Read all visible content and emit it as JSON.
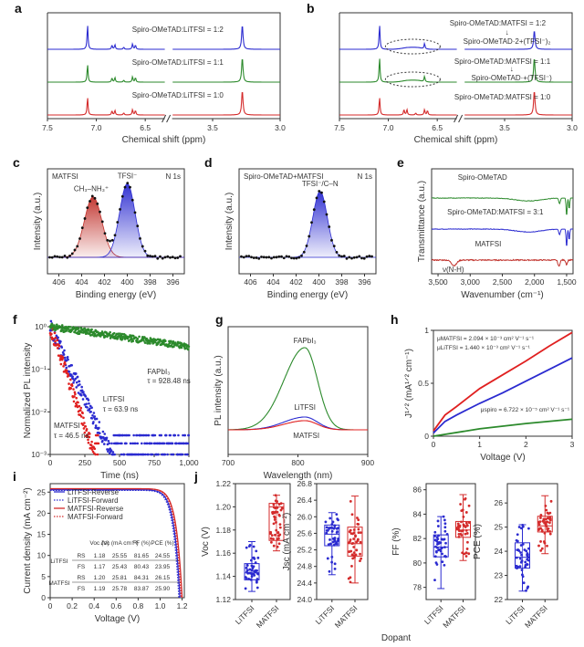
{
  "figure_label": "Dopant",
  "chart_data": [
    {
      "panel": "a",
      "type": "line",
      "title": "",
      "xlabel": "Chemical shift (ppm)",
      "ylabel": "",
      "x_ticks": [
        "7.5",
        "7.0",
        "6.5",
        "3.5",
        "3.0"
      ],
      "axis_break": true,
      "xlim": [
        7.5,
        3.0
      ],
      "series": [
        {
          "name": "Spiro-OMeTAD:LiTFSI = 1:2",
          "color": "#2b2bd0",
          "peaks_ppm": [
            7.09,
            6.84,
            6.81,
            6.72,
            6.63,
            6.6,
            3.28
          ],
          "heights": [
            0.9,
            0.15,
            0.17,
            0.08,
            0.2,
            0.15,
            0.9
          ]
        },
        {
          "name": "Spiro-OMeTAD:LiTFSI = 1:1",
          "color": "#2c8a2c",
          "peaks_ppm": [
            7.09,
            6.84,
            6.81,
            6.72,
            6.63,
            6.6,
            3.28
          ],
          "heights": [
            0.65,
            0.15,
            0.17,
            0.07,
            0.2,
            0.16,
            0.9
          ]
        },
        {
          "name": "Spiro-OMeTAD:LiTFSI = 1:0",
          "color": "#d42b2b",
          "peaks_ppm": [
            7.09,
            6.84,
            6.81,
            6.72,
            6.63,
            6.6,
            3.28
          ],
          "heights": [
            0.65,
            0.15,
            0.17,
            0.08,
            0.2,
            0.16,
            0.9
          ]
        }
      ]
    },
    {
      "panel": "b",
      "type": "line",
      "title": "",
      "xlabel": "Chemical shift (ppm)",
      "ylabel": "",
      "x_ticks": [
        "7.5",
        "7.0",
        "6.5",
        "3.5",
        "3.0"
      ],
      "axis_break": true,
      "xlim": [
        7.5,
        3.0
      ],
      "series": [
        {
          "name": "Spiro-OMeTAD:MATFSI = 1:2",
          "arrow_to": "Spiro-OMeTAD·2+(TFSI⁻)₂",
          "color": "#2b2bd0",
          "peaks_ppm": [
            7.09,
            6.63,
            3.28
          ],
          "heights": [
            0.9,
            0.2,
            0.7
          ]
        },
        {
          "name": "Spiro-OMeTAD:MATFSI = 1:1",
          "arrow_to": "Spiro-OMeTAD·+(TFSI⁻)",
          "color": "#2c8a2c",
          "peaks_ppm": [
            7.09,
            6.63,
            3.28
          ],
          "heights": [
            0.9,
            0.2,
            0.9
          ]
        },
        {
          "name": "Spiro-OMeTAD:MATFSI = 1:0",
          "color": "#d42b2b",
          "peaks_ppm": [
            7.09,
            6.84,
            6.81,
            6.72,
            6.63,
            6.6,
            3.28
          ],
          "heights": [
            0.65,
            0.2,
            0.2,
            0.07,
            0.2,
            0.16,
            0.9
          ]
        }
      ]
    },
    {
      "panel": "c",
      "type": "scatter",
      "title": "MATFSI",
      "corner_label": "N 1s",
      "xlabel": "Binding energy (eV)",
      "ylabel": "Intensity (a.u.)",
      "x_ticks": [
        "406",
        "404",
        "402",
        "400",
        "398",
        "396"
      ],
      "xlim": [
        407,
        395
      ],
      "peaks": [
        {
          "name": "CH₃–NH₃⁺",
          "center_eV": 403.0,
          "height": 0.78,
          "fwhm": 1.8,
          "color": "#c0302a"
        },
        {
          "name": "TFSI⁻",
          "center_eV": 400.0,
          "height": 0.95,
          "fwhm": 1.6,
          "color": "#2a2ad0"
        }
      ]
    },
    {
      "panel": "d",
      "type": "scatter",
      "title": "Spiro-OMeTAD+MATFSI",
      "corner_label": "N 1s",
      "xlabel": "Binding energy (eV)",
      "ylabel": "Intensity (a.u.)",
      "x_ticks": [
        "406",
        "404",
        "402",
        "400",
        "398",
        "396"
      ],
      "xlim": [
        407,
        395
      ],
      "peaks": [
        {
          "name": "TFSI⁻/C–N",
          "center_eV": 399.9,
          "height": 0.85,
          "fwhm": 1.5,
          "color": "#2a2ad0"
        }
      ]
    },
    {
      "panel": "e",
      "type": "line",
      "title": "",
      "xlabel": "Wavenumber (cm⁻¹)",
      "ylabel": "Transmittance (a.u.)",
      "x_ticks": [
        "3,500",
        "3,000",
        "2,500",
        "2,000",
        "1,500"
      ],
      "xlim": [
        3600,
        1400
      ],
      "annotation": "ν(N-H)",
      "series": [
        {
          "name": "Spiro-OMeTAD",
          "color": "#2c8a2c"
        },
        {
          "name": "Spiro-OMeTAD:MATFSI = 3:1",
          "color": "#2b2bd0"
        },
        {
          "name": "MATFSI",
          "color": "#c0302a"
        }
      ]
    },
    {
      "panel": "f",
      "type": "scatter",
      "title": "",
      "xlabel": "Time (ns)",
      "ylabel": "Normalized PL intensity",
      "x_ticks": [
        "0",
        "250",
        "500",
        "750",
        "1,000"
      ],
      "xlim": [
        0,
        1000
      ],
      "y_ticks": [
        "10⁰",
        "10⁻¹",
        "10⁻²",
        "10⁻³"
      ],
      "ylim_log10": [
        -3,
        0
      ],
      "series": [
        {
          "name": "FAPbI₃",
          "tau_label": "τ = 928.48 ns",
          "tau_ns": 928.48,
          "color": "#2c8a2c"
        },
        {
          "name": "LiTFSI",
          "tau_label": "τ = 63.9 ns",
          "tau_ns": 63.9,
          "color": "#2b2bd0"
        },
        {
          "name": "MATFSI",
          "tau_label": "τ = 46.5 ns",
          "tau_ns": 46.5,
          "color": "#e02020"
        }
      ]
    },
    {
      "panel": "g",
      "type": "line",
      "title": "",
      "xlabel": "Wavelength (nm)",
      "ylabel": "PL intensity (a.u.)",
      "x_ticks": [
        "700",
        "800",
        "900"
      ],
      "xlim": [
        700,
        900
      ],
      "series": [
        {
          "name": "FAPbI₃",
          "peak_nm": 810,
          "height": 0.9,
          "color": "#2c8a2c"
        },
        {
          "name": "LiTFSI",
          "peak_nm": 810,
          "height": 0.14,
          "color": "#2b2bd0"
        },
        {
          "name": "MATFSI",
          "peak_nm": 810,
          "height": 0.1,
          "color": "#e02020"
        }
      ]
    },
    {
      "panel": "h",
      "type": "line",
      "title": "",
      "xlabel": "Voltage (V)",
      "ylabel": "J¹ᐟ² (mA¹ᐟ² cm⁻¹)",
      "x_ticks": [
        "0",
        "1",
        "2",
        "3"
      ],
      "xlim": [
        0,
        3
      ],
      "y_ticks": [
        "0",
        "0.5",
        "1"
      ],
      "ylim": [
        0,
        1
      ],
      "annotations": [
        "μMATFSI = 2.094 × 10⁻³ cm² V⁻¹ s⁻¹",
        "μLiTFSI = 1.440 × 10⁻³ cm² V⁻¹ s⁻¹",
        "μspiro = 6.722 × 10⁻⁵ cm² V⁻¹ s⁻¹"
      ],
      "series": [
        {
          "name": "MATFSI",
          "color": "#e02020",
          "x": [
            0,
            0.25,
            0.5,
            1,
            1.5,
            2,
            2.5,
            3
          ],
          "y": [
            0.05,
            0.2,
            0.28,
            0.45,
            0.58,
            0.71,
            0.85,
            0.98
          ]
        },
        {
          "name": "LiTFSI",
          "color": "#2b2bd0",
          "x": [
            0,
            0.25,
            0.5,
            1,
            1.5,
            2,
            2.5,
            3
          ],
          "y": [
            0.03,
            0.14,
            0.2,
            0.31,
            0.41,
            0.52,
            0.63,
            0.74
          ]
        },
        {
          "name": "Spiro",
          "color": "#2c8a2c",
          "x": [
            0,
            1,
            2,
            3
          ],
          "y": [
            0.0,
            0.07,
            0.12,
            0.16
          ]
        }
      ]
    },
    {
      "panel": "i",
      "type": "line",
      "title": "",
      "xlabel": "Voltage (V)",
      "ylabel": "Current density (mA cm⁻²)",
      "x_ticks": [
        "0",
        "0.2",
        "0.4",
        "0.6",
        "0.8",
        "1.0",
        "1.2"
      ],
      "xlim": [
        0,
        1.22
      ],
      "y_ticks": [
        "0",
        "5",
        "10",
        "15",
        "20",
        "25"
      ],
      "ylim": [
        0,
        27
      ],
      "legend": [
        {
          "name": "LiTFSI-Reverse",
          "color": "#2b2bd0",
          "style": "solid"
        },
        {
          "name": "LiTFSI-Forward",
          "color": "#2b2bd0",
          "style": "dotted"
        },
        {
          "name": "MATFSI-Reverse",
          "color": "#d42b2b",
          "style": "solid"
        },
        {
          "name": "MATFSI-Forward",
          "color": "#d42b2b",
          "style": "dotted"
        }
      ],
      "series": [
        {
          "name": "LiTFSI-Reverse",
          "voc": 1.18,
          "jsc": 25.55
        },
        {
          "name": "LiTFSI-Forward",
          "voc": 1.17,
          "jsc": 25.43
        },
        {
          "name": "MATFSI-Reverse",
          "voc": 1.2,
          "jsc": 25.81
        },
        {
          "name": "MATFSI-Forward",
          "voc": 1.19,
          "jsc": 25.78
        }
      ],
      "table": {
        "headers": [
          "",
          "",
          "Voc (V)",
          "Jsc (mA cm⁻²)",
          "FF (%)",
          "PCE (%)"
        ],
        "rows": [
          [
            "LiTFSI",
            "RS",
            "1.18",
            "25.55",
            "81.65",
            "24.55"
          ],
          [
            "",
            "FS",
            "1.17",
            "25.43",
            "80.43",
            "23.95"
          ],
          [
            "MATFSI",
            "RS",
            "1.20",
            "25.81",
            "84.31",
            "26.15"
          ],
          [
            "",
            "FS",
            "1.19",
            "25.78",
            "83.87",
            "25.90"
          ]
        ]
      }
    },
    {
      "panel": "j",
      "type": "box",
      "title": "",
      "xlabel": "Dopant",
      "categories": [
        "LiTFSI",
        "MATFSI"
      ],
      "subplots": [
        {
          "ylabel": "Voc (V)",
          "ylim": [
            1.12,
            1.22
          ],
          "y_ticks": [
            "1.12",
            "1.14",
            "1.16",
            "1.18",
            "1.20",
            "1.22"
          ],
          "boxes": [
            {
              "min": 1.127,
              "q1": 1.137,
              "median": 1.143,
              "q3": 1.151,
              "max": 1.17
            },
            {
              "min": 1.162,
              "q1": 1.171,
              "median": 1.2,
              "q3": 1.203,
              "max": 1.21
            }
          ]
        },
        {
          "ylabel": "Jsc (mA cm⁻²)",
          "ylim": [
            24.0,
            26.8
          ],
          "y_ticks": [
            "24.0",
            "24.4",
            "24.8",
            "25.2",
            "25.6",
            "26.0",
            "26.4",
            "26.8"
          ],
          "boxes": [
            {
              "min": 24.6,
              "q1": 25.3,
              "median": 25.58,
              "q3": 25.8,
              "max": 26.1
            },
            {
              "min": 24.4,
              "q1": 25.05,
              "median": 25.35,
              "q3": 25.75,
              "max": 26.5
            }
          ]
        },
        {
          "ylabel": "FF (%)",
          "ylim": [
            77,
            86.5
          ],
          "y_ticks": [
            "78",
            "80",
            "82",
            "84",
            "86"
          ],
          "boxes": [
            {
              "min": 77.9,
              "q1": 80.5,
              "median": 81.3,
              "q3": 82.3,
              "max": 83.8
            },
            {
              "min": 80.2,
              "q1": 82.1,
              "median": 82.7,
              "q3": 83.4,
              "max": 85.6
            }
          ]
        },
        {
          "ylabel": "PCE (%)",
          "ylim": [
            22,
            26.8
          ],
          "y_ticks": [
            "22",
            "23",
            "24",
            "25",
            "26"
          ],
          "boxes": [
            {
              "min": 22.35,
              "q1": 23.3,
              "median": 23.75,
              "q3": 24.35,
              "max": 25.1
            },
            {
              "min": 23.9,
              "q1": 24.8,
              "median": 25.05,
              "q3": 25.45,
              "max": 26.3
            }
          ]
        }
      ]
    }
  ]
}
